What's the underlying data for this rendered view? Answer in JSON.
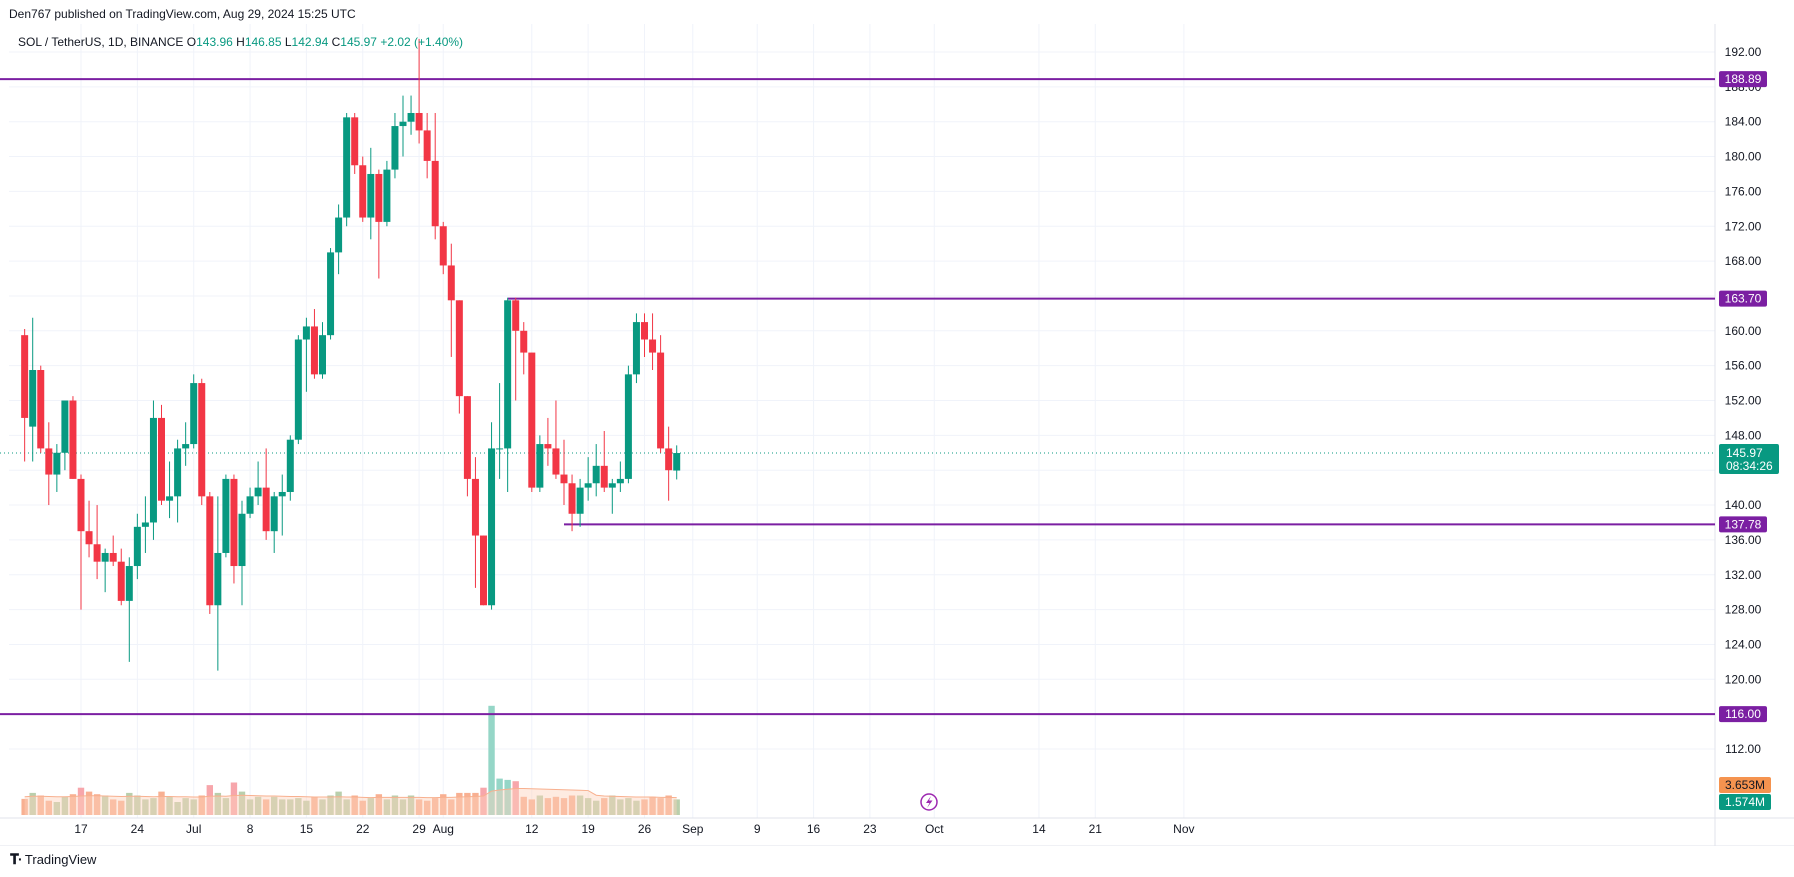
{
  "header": {
    "published": "Den767 published on TradingView.com, Aug 29, 2024 15:25 UTC"
  },
  "legend": {
    "symbol": "SOL / TetherUS, 1D, BINANCE",
    "o_label": "O",
    "o_value": "143.96",
    "h_label": "H",
    "h_value": "146.85",
    "l_label": "L",
    "l_value": "142.94",
    "c_label": "C",
    "c_value": "145.97",
    "change": "+2.02 (+1.40%)"
  },
  "footer": {
    "brand": "TradingView",
    "logo_icon": "tradingview-logo-icon"
  },
  "colors": {
    "up": "#089981",
    "down": "#f23645",
    "level": "#7b1fa2",
    "volume_up": "#b5cca8",
    "volume_down": "#f8ac8c",
    "volume_ma": "#fcd2bd"
  },
  "chart_data": {
    "type": "candlestick",
    "symbol": "SOL / TetherUS",
    "interval": "1D",
    "exchange": "BINANCE",
    "y_ticks": [
      "192.00",
      "188.00",
      "184.00",
      "180.00",
      "176.00",
      "172.00",
      "168.00",
      "164.00",
      "160.00",
      "156.00",
      "152.00",
      "148.00",
      "144.00",
      "140.00",
      "136.00",
      "132.00",
      "128.00",
      "124.00",
      "120.00",
      "116.00",
      "112.00"
    ],
    "ylim": [
      107.5,
      195.5
    ],
    "x_ticks": [
      {
        "label": "17",
        "day": 0
      },
      {
        "label": "24",
        "day": 7
      },
      {
        "label": "Jul",
        "day": 14
      },
      {
        "label": "8",
        "day": 21
      },
      {
        "label": "15",
        "day": 28
      },
      {
        "label": "22",
        "day": 35
      },
      {
        "label": "29",
        "day": 42
      },
      {
        "label": "Aug",
        "day": 45
      },
      {
        "label": "12",
        "day": 56
      },
      {
        "label": "19",
        "day": 63
      },
      {
        "label": "26",
        "day": 70
      },
      {
        "label": "Sep",
        "day": 76
      },
      {
        "label": "9",
        "day": 84
      },
      {
        "label": "16",
        "day": 91
      },
      {
        "label": "23",
        "day": 98
      },
      {
        "label": "Oct",
        "day": 106
      },
      {
        "label": "14",
        "day": 119
      },
      {
        "label": "21",
        "day": 126
      },
      {
        "label": "Nov",
        "day": 137
      }
    ],
    "candles": [
      {
        "o": 159.5,
        "h": 160.2,
        "l": 145.0,
        "c": 150.0
      },
      {
        "o": 149.0,
        "h": 161.5,
        "l": 145.0,
        "c": 155.5
      },
      {
        "o": 155.5,
        "h": 156.0,
        "l": 146.0,
        "c": 146.5
      },
      {
        "o": 146.5,
        "h": 149.5,
        "l": 140.0,
        "c": 143.5
      },
      {
        "o": 143.5,
        "h": 147.0,
        "l": 141.5,
        "c": 146.0
      },
      {
        "o": 146.0,
        "h": 152.0,
        "l": 144.0,
        "c": 152.0
      },
      {
        "o": 152.0,
        "h": 152.5,
        "l": 143.0,
        "c": 143.0
      },
      {
        "o": 143.0,
        "h": 143.5,
        "l": 128.0,
        "c": 137.0
      },
      {
        "o": 137.0,
        "h": 140.5,
        "l": 134.0,
        "c": 135.5
      },
      {
        "o": 135.5,
        "h": 140.0,
        "l": 131.5,
        "c": 133.5
      },
      {
        "o": 133.5,
        "h": 135.0,
        "l": 130.0,
        "c": 134.5
      },
      {
        "o": 134.5,
        "h": 136.5,
        "l": 133.0,
        "c": 133.5
      },
      {
        "o": 133.5,
        "h": 135.0,
        "l": 128.5,
        "c": 129.0
      },
      {
        "o": 129.0,
        "h": 134.0,
        "l": 122.0,
        "c": 133.0
      },
      {
        "o": 133.0,
        "h": 139.0,
        "l": 131.5,
        "c": 137.5
      },
      {
        "o": 137.5,
        "h": 141.0,
        "l": 134.5,
        "c": 138.0
      },
      {
        "o": 138.0,
        "h": 152.0,
        "l": 136.0,
        "c": 150.0
      },
      {
        "o": 150.0,
        "h": 151.5,
        "l": 140.0,
        "c": 140.5
      },
      {
        "o": 140.5,
        "h": 145.0,
        "l": 138.5,
        "c": 141.0
      },
      {
        "o": 141.0,
        "h": 147.5,
        "l": 138.0,
        "c": 146.5
      },
      {
        "o": 146.5,
        "h": 149.5,
        "l": 144.5,
        "c": 147.0
      },
      {
        "o": 147.0,
        "h": 155.0,
        "l": 146.5,
        "c": 154.0
      },
      {
        "o": 154.0,
        "h": 154.5,
        "l": 140.0,
        "c": 141.0
      },
      {
        "o": 141.0,
        "h": 141.5,
        "l": 127.5,
        "c": 128.5
      },
      {
        "o": 128.5,
        "h": 141.0,
        "l": 121.0,
        "c": 134.5
      },
      {
        "o": 134.5,
        "h": 143.5,
        "l": 134.0,
        "c": 143.0
      },
      {
        "o": 143.0,
        "h": 143.5,
        "l": 131.0,
        "c": 133.0
      },
      {
        "o": 133.0,
        "h": 140.5,
        "l": 128.5,
        "c": 139.0
      },
      {
        "o": 139.0,
        "h": 142.0,
        "l": 138.5,
        "c": 141.0
      },
      {
        "o": 141.0,
        "h": 145.0,
        "l": 140.0,
        "c": 142.0
      },
      {
        "o": 142.0,
        "h": 146.5,
        "l": 136.0,
        "c": 137.0
      },
      {
        "o": 137.0,
        "h": 141.5,
        "l": 134.5,
        "c": 141.0
      },
      {
        "o": 141.0,
        "h": 143.5,
        "l": 136.5,
        "c": 141.5
      },
      {
        "o": 141.5,
        "h": 148.0,
        "l": 140.5,
        "c": 147.5
      },
      {
        "o": 147.5,
        "h": 159.5,
        "l": 147.0,
        "c": 159.0
      },
      {
        "o": 159.0,
        "h": 161.5,
        "l": 153.0,
        "c": 160.5
      },
      {
        "o": 160.5,
        "h": 162.5,
        "l": 154.5,
        "c": 155.0
      },
      {
        "o": 155.0,
        "h": 161.0,
        "l": 154.5,
        "c": 159.5
      },
      {
        "o": 159.5,
        "h": 169.5,
        "l": 159.0,
        "c": 169.0
      },
      {
        "o": 169.0,
        "h": 174.5,
        "l": 166.5,
        "c": 173.0
      },
      {
        "o": 173.0,
        "h": 185.0,
        "l": 172.0,
        "c": 184.5
      },
      {
        "o": 184.5,
        "h": 185.0,
        "l": 178.0,
        "c": 179.0
      },
      {
        "o": 179.0,
        "h": 180.0,
        "l": 172.5,
        "c": 173.0
      },
      {
        "o": 173.0,
        "h": 181.0,
        "l": 170.5,
        "c": 178.0
      },
      {
        "o": 178.0,
        "h": 178.5,
        "l": 166.0,
        "c": 172.5
      },
      {
        "o": 172.5,
        "h": 179.5,
        "l": 172.0,
        "c": 178.5
      },
      {
        "o": 178.5,
        "h": 185.0,
        "l": 177.5,
        "c": 183.5
      },
      {
        "o": 183.5,
        "h": 187.0,
        "l": 180.0,
        "c": 184.0
      },
      {
        "o": 184.0,
        "h": 187.0,
        "l": 182.5,
        "c": 185.0
      },
      {
        "o": 185.0,
        "h": 193.5,
        "l": 181.5,
        "c": 183.0
      },
      {
        "o": 183.0,
        "h": 185.0,
        "l": 177.5,
        "c": 179.5
      },
      {
        "o": 179.5,
        "h": 185.0,
        "l": 170.5,
        "c": 172.0
      },
      {
        "o": 172.0,
        "h": 172.5,
        "l": 166.5,
        "c": 167.5
      },
      {
        "o": 167.5,
        "h": 170.0,
        "l": 157.0,
        "c": 163.5
      },
      {
        "o": 163.5,
        "h": 163.5,
        "l": 150.5,
        "c": 152.5
      },
      {
        "o": 152.5,
        "h": 152.5,
        "l": 141.0,
        "c": 143.0
      },
      {
        "o": 143.0,
        "h": 145.5,
        "l": 130.5,
        "c": 136.5
      },
      {
        "o": 136.5,
        "h": 136.5,
        "l": 128.5,
        "c": 128.5
      },
      {
        "o": 128.5,
        "h": 149.5,
        "l": 128.0,
        "c": 146.5
      },
      {
        "o": 146.5,
        "h": 154.0,
        "l": 143.0,
        "c": 146.5
      },
      {
        "o": 146.5,
        "h": 163.8,
        "l": 141.5,
        "c": 163.5
      },
      {
        "o": 163.5,
        "h": 163.8,
        "l": 152.0,
        "c": 160.0
      },
      {
        "o": 160.0,
        "h": 161.0,
        "l": 155.0,
        "c": 157.5
      },
      {
        "o": 157.5,
        "h": 157.5,
        "l": 141.5,
        "c": 142.0
      },
      {
        "o": 142.0,
        "h": 148.0,
        "l": 141.5,
        "c": 147.0
      },
      {
        "o": 147.0,
        "h": 150.0,
        "l": 144.5,
        "c": 146.5
      },
      {
        "o": 146.5,
        "h": 152.0,
        "l": 143.0,
        "c": 143.5
      },
      {
        "o": 143.5,
        "h": 147.5,
        "l": 140.0,
        "c": 142.5
      },
      {
        "o": 142.5,
        "h": 143.5,
        "l": 137.0,
        "c": 139.0
      },
      {
        "o": 139.0,
        "h": 143.0,
        "l": 137.5,
        "c": 142.0
      },
      {
        "o": 142.0,
        "h": 145.5,
        "l": 140.5,
        "c": 142.5
      },
      {
        "o": 142.5,
        "h": 147.0,
        "l": 141.0,
        "c": 144.5
      },
      {
        "o": 144.5,
        "h": 148.5,
        "l": 141.5,
        "c": 142.0
      },
      {
        "o": 142.0,
        "h": 143.0,
        "l": 139.0,
        "c": 142.5
      },
      {
        "o": 142.5,
        "h": 145.0,
        "l": 141.5,
        "c": 143.0
      },
      {
        "o": 143.0,
        "h": 156.0,
        "l": 142.5,
        "c": 155.0
      },
      {
        "o": 155.0,
        "h": 162.0,
        "l": 154.0,
        "c": 161.0
      },
      {
        "o": 161.0,
        "h": 162.0,
        "l": 157.0,
        "c": 159.0
      },
      {
        "o": 159.0,
        "h": 162.0,
        "l": 155.5,
        "c": 157.5
      },
      {
        "o": 157.5,
        "h": 159.5,
        "l": 146.0,
        "c": 146.5
      },
      {
        "o": 146.5,
        "h": 149.0,
        "l": 140.5,
        "c": 144.0
      },
      {
        "o": 143.96,
        "h": 146.85,
        "l": 142.94,
        "c": 145.97
      }
    ],
    "volume": [
      0.62,
      0.85,
      0.75,
      0.55,
      0.5,
      0.7,
      0.8,
      1.05,
      0.9,
      0.8,
      0.75,
      0.6,
      0.55,
      0.85,
      0.75,
      0.6,
      0.65,
      0.9,
      0.7,
      0.5,
      0.65,
      0.6,
      0.75,
      1.15,
      0.85,
      0.65,
      1.25,
      0.9,
      0.6,
      0.7,
      0.6,
      0.7,
      0.6,
      0.6,
      0.65,
      0.55,
      0.7,
      0.6,
      0.75,
      0.9,
      0.6,
      0.75,
      0.55,
      0.65,
      0.8,
      0.6,
      0.75,
      0.6,
      0.75,
      0.6,
      0.55,
      0.65,
      0.8,
      0.6,
      0.85,
      0.85,
      0.85,
      1.05,
      4.2,
      1.4,
      1.35,
      1.3,
      0.7,
      0.6,
      0.75,
      0.65,
      0.7,
      0.65,
      0.75,
      0.75,
      0.65,
      0.55,
      0.65,
      0.75,
      0.6,
      0.65,
      0.55,
      0.6,
      0.7,
      0.65,
      0.75,
      0.6
    ],
    "volume_ma": [
      0.7,
      0.72,
      0.72,
      0.71,
      0.7,
      0.7,
      0.71,
      0.73,
      0.74,
      0.74,
      0.73,
      0.72,
      0.71,
      0.72,
      0.72,
      0.71,
      0.7,
      0.71,
      0.71,
      0.7,
      0.7,
      0.69,
      0.69,
      0.72,
      0.73,
      0.72,
      0.75,
      0.76,
      0.75,
      0.74,
      0.73,
      0.73,
      0.72,
      0.71,
      0.71,
      0.7,
      0.69,
      0.69,
      0.69,
      0.7,
      0.69,
      0.69,
      0.68,
      0.67,
      0.68,
      0.68,
      0.68,
      0.68,
      0.68,
      0.68,
      0.67,
      0.67,
      0.68,
      0.68,
      0.69,
      0.7,
      0.71,
      0.73,
      0.92,
      0.96,
      0.99,
      1.02,
      1.02,
      1.01,
      1.0,
      0.99,
      0.98,
      0.97,
      0.96,
      0.95,
      0.94,
      0.76,
      0.73,
      0.72,
      0.71,
      0.7,
      0.69,
      0.69,
      0.69,
      0.68,
      0.68,
      0.67
    ],
    "levels": [
      {
        "value": 188.89,
        "label": "188.89",
        "from": "start"
      },
      {
        "value": 163.7,
        "label": "163.70",
        "from_index": 60
      },
      {
        "value": 137.78,
        "label": "137.78",
        "from_index": 67
      },
      {
        "value": 116.0,
        "label": "116.00",
        "from": "start"
      }
    ],
    "price_badge": {
      "value": 145.97,
      "label": "145.97",
      "countdown": "08:34:26"
    },
    "volume_badges": {
      "volume_ma": "3.653M",
      "volume": "1.574M"
    }
  }
}
